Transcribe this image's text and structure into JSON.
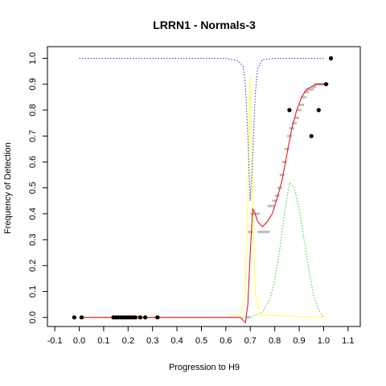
{
  "chart_data": {
    "type": "scatter",
    "title": "LRRN1 - Normals-3",
    "xlabel": "Progression to H9",
    "ylabel": "Frequency of Detection",
    "xlim": [
      -0.13,
      1.15
    ],
    "ylim": [
      -0.035,
      1.045
    ],
    "xticks": [
      -0.1,
      0.0,
      0.1,
      0.2,
      0.3,
      0.4,
      0.5,
      0.6,
      0.7,
      0.8,
      0.9,
      1.0,
      1.1
    ],
    "yticks": [
      0.0,
      0.1,
      0.2,
      0.3,
      0.4,
      0.5,
      0.6,
      0.7,
      0.8,
      0.9,
      1.0
    ],
    "xtick_labels": [
      "-0.1",
      "0.0",
      "0.1",
      "0.2",
      "0.3",
      "0.4",
      "0.5",
      "0.6",
      "0.7",
      "0.8",
      "0.9",
      "1.0",
      "1.1"
    ],
    "ytick_labels": [
      "0.0",
      "0.1",
      "0.2",
      "0.3",
      "0.4",
      "0.5",
      "0.6",
      "0.7",
      "0.8",
      "0.9",
      "1.0"
    ],
    "colors": {
      "points": "#000000",
      "gray_trace": "#bfbfbf",
      "fit": "#e41a1c",
      "blue_dotted": "#3333cc",
      "green_dotted": "#33cc33",
      "yellow": "#ffff66",
      "orange_markers": "#ff9900"
    },
    "series": [
      {
        "role": "observed-points",
        "x": [
          -0.02,
          0.01,
          0.14,
          0.15,
          0.16,
          0.17,
          0.18,
          0.19,
          0.2,
          0.21,
          0.22,
          0.23,
          0.25,
          0.27,
          0.32,
          0.86,
          0.95,
          0.98,
          1.01,
          1.03
        ],
        "y": [
          0,
          0,
          0,
          0,
          0,
          0,
          0,
          0,
          0,
          0,
          0,
          0,
          0,
          0,
          0,
          0.8,
          0.7,
          0.8,
          0.9,
          1.0
        ]
      },
      {
        "role": "gray-step-trace",
        "x": [
          -0.02,
          0.32,
          0.69,
          0.7,
          0.71,
          0.72,
          0.73,
          0.74,
          0.75,
          0.76,
          0.77,
          0.78,
          0.79,
          0.8,
          0.81,
          0.82,
          0.83,
          0.84,
          0.85,
          0.86,
          0.87,
          0.88,
          0.89,
          0.9,
          0.91,
          0.92,
          0.93,
          0.94,
          0.95,
          0.96,
          0.97,
          0.98,
          0.99,
          1.0,
          1.01
        ],
        "y": [
          0,
          0,
          0,
          0.33,
          0.4,
          0.4,
          0.4,
          0.33,
          0.33,
          0.33,
          0.33,
          0.43,
          0.43,
          0.45,
          0.47,
          0.5,
          0.55,
          0.6,
          0.65,
          0.7,
          0.73,
          0.75,
          0.77,
          0.8,
          0.82,
          0.85,
          0.87,
          0.88,
          0.88,
          0.89,
          0.9,
          0.9,
          0.9,
          0.9,
          0.9
        ]
      },
      {
        "role": "red-fit",
        "x": [
          0.0,
          0.3,
          0.6,
          0.66,
          0.68,
          0.69,
          0.7,
          0.71,
          0.72,
          0.73,
          0.75,
          0.77,
          0.79,
          0.81,
          0.83,
          0.85,
          0.87,
          0.89,
          0.91,
          0.93,
          0.95,
          0.97,
          1.0
        ],
        "y": [
          0,
          0,
          0,
          0,
          -0.02,
          0.05,
          0.25,
          0.42,
          0.4,
          0.37,
          0.35,
          0.37,
          0.4,
          0.46,
          0.53,
          0.63,
          0.73,
          0.8,
          0.85,
          0.88,
          0.89,
          0.9,
          0.9
        ]
      },
      {
        "role": "blue-dotted",
        "x": [
          0.0,
          0.6,
          0.65,
          0.67,
          0.68,
          0.69,
          0.7,
          0.71,
          0.72,
          0.73,
          0.75,
          0.8,
          1.0
        ],
        "y": [
          1.0,
          1.0,
          0.99,
          0.97,
          0.9,
          0.7,
          0.45,
          0.62,
          0.86,
          0.96,
          0.995,
          1.0,
          1.0
        ]
      },
      {
        "role": "green-dotted",
        "x": [
          0.0,
          0.6,
          0.7,
          0.75,
          0.78,
          0.8,
          0.82,
          0.84,
          0.86,
          0.88,
          0.9,
          0.92,
          0.94,
          0.96,
          0.98,
          1.0
        ],
        "y": [
          0,
          0,
          0.0,
          0.02,
          0.07,
          0.14,
          0.26,
          0.4,
          0.52,
          0.5,
          0.42,
          0.3,
          0.18,
          0.08,
          0.03,
          0.0
        ]
      },
      {
        "role": "yellow-line",
        "x": [
          0.0,
          0.6,
          0.66,
          0.68,
          0.69,
          0.7,
          0.71,
          0.72,
          0.74,
          1.0
        ],
        "y": [
          0,
          0,
          0.01,
          0.1,
          0.45,
          0.93,
          0.5,
          0.1,
          0.01,
          0
        ]
      }
    ],
    "orange_markers_x": [
      0.14,
      0.15,
      0.16,
      0.17,
      0.18,
      0.19,
      0.2,
      0.21,
      0.22,
      0.23,
      0.24,
      0.25
    ]
  }
}
